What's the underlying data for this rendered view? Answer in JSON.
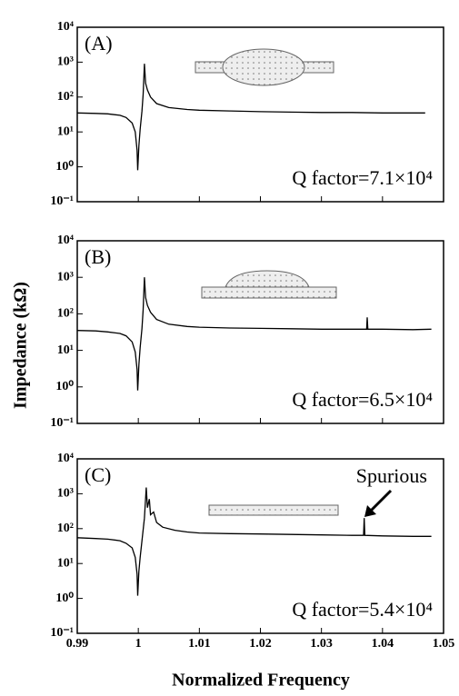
{
  "chart_data": [
    {
      "type": "line",
      "panel_label": "(A)",
      "annotation": "Q factor=7.1×10⁴",
      "color": "#000000",
      "log_y": true,
      "x": [
        0.99,
        0.993,
        0.995,
        0.997,
        0.998,
        0.999,
        0.9995,
        0.9998,
        0.9999,
        1.0001,
        1.0003,
        1.0006,
        1.0008,
        1.001,
        1.0012,
        1.0015,
        1.002,
        1.003,
        1.005,
        1.008,
        1.01,
        1.015,
        1.02,
        1.025,
        1.03,
        1.035,
        1.04,
        1.045,
        1.047
      ],
      "values": [
        35,
        34,
        33,
        30,
        26,
        18,
        10,
        3,
        0.8,
        4,
        12,
        40,
        120,
        900,
        250,
        160,
        100,
        65,
        50,
        44,
        42,
        40,
        38,
        37,
        36,
        36,
        35,
        35,
        35
      ],
      "xlim": [
        0.99,
        1.05
      ],
      "xticks": [
        0.99,
        1,
        1.01,
        1.02,
        1.03,
        1.04,
        1.05
      ],
      "show_xtick_labels": false,
      "ylim": [
        0.1,
        10000
      ],
      "yticks": [
        {
          "value": 0.1,
          "label": "10⁻¹"
        },
        {
          "value": 1,
          "label": "10⁰"
        },
        {
          "value": 10,
          "label": "10¹"
        },
        {
          "value": 100,
          "label": "10²"
        },
        {
          "value": 1000,
          "label": "10³"
        },
        {
          "value": 10000,
          "label": "10⁴"
        }
      ]
    },
    {
      "type": "line",
      "panel_label": "(B)",
      "annotation": "Q factor=6.5×10⁴",
      "color": "#000000",
      "log_y": true,
      "ylabel": "Impedance (kΩ)",
      "x": [
        0.99,
        0.993,
        0.995,
        0.997,
        0.998,
        0.999,
        0.9995,
        0.9998,
        0.9999,
        1.0001,
        1.0003,
        1.0006,
        1.0008,
        1.001,
        1.0012,
        1.0015,
        1.002,
        1.003,
        1.005,
        1.008,
        1.01,
        1.015,
        1.02,
        1.025,
        1.03,
        1.035,
        1.0374,
        1.0375,
        1.0376,
        1.04,
        1.045,
        1.048
      ],
      "values": [
        35,
        34,
        32,
        29,
        25,
        17,
        9,
        3,
        0.8,
        4,
        12,
        40,
        130,
        1000,
        280,
        170,
        110,
        70,
        52,
        45,
        43,
        41,
        40,
        39,
        38,
        38,
        38,
        80,
        38,
        38,
        37,
        38
      ],
      "xlim": [
        0.99,
        1.05
      ],
      "xticks": [
        0.99,
        1,
        1.01,
        1.02,
        1.03,
        1.04,
        1.05
      ],
      "show_xtick_labels": false,
      "ylim": [
        0.1,
        10000
      ],
      "yticks": [
        {
          "value": 0.1,
          "label": "10⁻¹"
        },
        {
          "value": 1,
          "label": "10⁰"
        },
        {
          "value": 10,
          "label": "10¹"
        },
        {
          "value": 100,
          "label": "10²"
        },
        {
          "value": 1000,
          "label": "10³"
        },
        {
          "value": 10000,
          "label": "10⁴"
        }
      ]
    },
    {
      "type": "line",
      "panel_label": "(C)",
      "annotation": "Q factor=5.4×10⁴",
      "callout": "Spurious",
      "color": "#000000",
      "log_y": true,
      "xlabel": "Normalized Frequency",
      "x": [
        0.99,
        0.993,
        0.995,
        0.997,
        0.998,
        0.999,
        0.9995,
        0.9998,
        0.9999,
        1.0001,
        1.0003,
        1.0006,
        1.001,
        1.0013,
        1.0015,
        1.0018,
        1.002,
        1.0025,
        1.003,
        1.004,
        1.006,
        1.008,
        1.01,
        1.015,
        1.02,
        1.025,
        1.03,
        1.035,
        1.0369,
        1.037,
        1.0371,
        1.04,
        1.045,
        1.048
      ],
      "values": [
        55,
        52,
        50,
        45,
        38,
        28,
        15,
        5,
        1.2,
        6,
        15,
        45,
        200,
        1500,
        400,
        700,
        250,
        300,
        150,
        110,
        90,
        80,
        75,
        72,
        70,
        68,
        66,
        64,
        64,
        200,
        64,
        62,
        60,
        60
      ],
      "xlim": [
        0.99,
        1.05
      ],
      "xticks": [
        0.99,
        1,
        1.01,
        1.02,
        1.03,
        1.04,
        1.05
      ],
      "show_xtick_labels": true,
      "ylim": [
        0.1,
        10000
      ],
      "yticks": [
        {
          "value": 0.1,
          "label": "10⁻¹"
        },
        {
          "value": 1,
          "label": "10⁰"
        },
        {
          "value": 10,
          "label": "10¹"
        },
        {
          "value": 100,
          "label": "10²"
        },
        {
          "value": 1000,
          "label": "10³"
        },
        {
          "value": 10000,
          "label": "10⁴"
        }
      ]
    }
  ]
}
